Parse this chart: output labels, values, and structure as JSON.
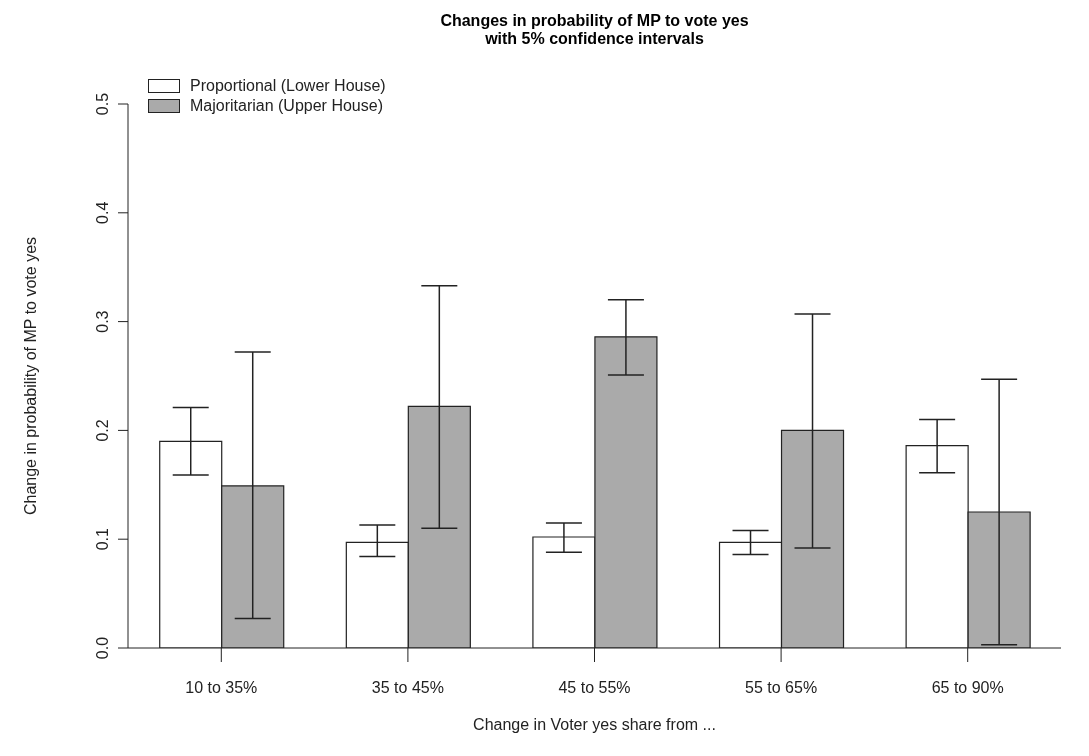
{
  "chart_data": {
    "type": "bar",
    "title": "Changes in probability of MP to vote yes\nwith 5% confidence intervals",
    "xlabel": "Change in Voter yes share from ...",
    "ylabel": "Change in probability of MP to vote yes",
    "categories": [
      "10 to 35%",
      "35 to 45%",
      "45 to 55%",
      "55 to 65%",
      "65 to 90%"
    ],
    "series": [
      {
        "name": "Proportional (Lower House)",
        "color": "#ffffff",
        "values": [
          0.19,
          0.097,
          0.102,
          0.097,
          0.186
        ],
        "errors": [
          [
            0.159,
            0.221
          ],
          [
            0.084,
            0.113
          ],
          [
            0.088,
            0.115
          ],
          [
            0.086,
            0.108
          ],
          [
            0.161,
            0.21
          ]
        ]
      },
      {
        "name": "Majoritarian (Upper House)",
        "color": "#aaaaaa",
        "values": [
          0.149,
          0.222,
          0.286,
          0.2,
          0.125
        ],
        "errors": [
          [
            0.027,
            0.272
          ],
          [
            0.11,
            0.333
          ],
          [
            0.251,
            0.32
          ],
          [
            0.092,
            0.307
          ],
          [
            0.003,
            0.247
          ]
        ]
      }
    ],
    "ylim": [
      0,
      0.5
    ],
    "yticks": [
      {
        "value": 0,
        "label": "0.0"
      },
      {
        "value": 0.1,
        "label": "0.1"
      },
      {
        "value": 0.2,
        "label": "0.2"
      },
      {
        "value": 0.3,
        "label": "0.3"
      },
      {
        "value": 0.4,
        "label": "0.4"
      },
      {
        "value": 0.5,
        "label": "0.5"
      }
    ],
    "grid": false,
    "legend": "top left"
  }
}
